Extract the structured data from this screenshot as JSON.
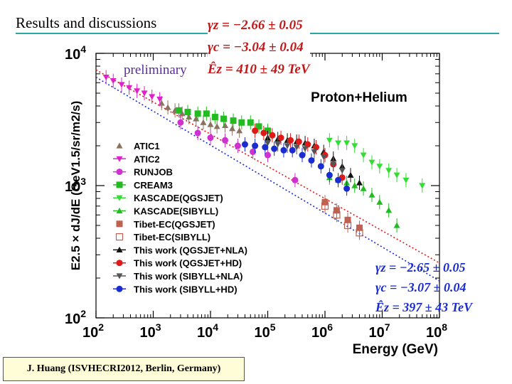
{
  "slide": {
    "title": "Results and discussions",
    "credit": "J. Huang  (ISVHECRI2012,  Berlin,  Germany)"
  },
  "fits": {
    "hd": [
      "γz = −2.66 ± 0.05",
      "γc = −3.04 ± 0.04",
      "Êz = 410 ± 49 TeV"
    ],
    "sibyll": [
      "γz = −2.65 ± 0.05",
      "γc = −3.07 ± 0.04",
      "Êz = 397 ± 43 TeV"
    ]
  },
  "chart_data": {
    "type": "scatter",
    "title": "Proton+Helium",
    "annotation": "preliminary",
    "xlabel": "Energy (GeV)",
    "ylabel": "E2.5 × dJ/dE (GeV1.5/sr/m2/s)",
    "xscale": "log",
    "yscale": "log",
    "xlim": [
      100,
      100000000
    ],
    "ylim": [
      100,
      10000
    ],
    "xticks": [
      "10^2",
      "10^3",
      "10^4",
      "10^5",
      "10^6",
      "10^7",
      "10^8"
    ],
    "yticks": [
      "10^2",
      "10^3",
      "10^4"
    ],
    "series": [
      {
        "name": "ATIC1",
        "marker": "tri-up",
        "color": "#8a7260",
        "x": [
          1400,
          1800,
          2400,
          3200,
          4200,
          5600,
          7500,
          10000,
          13000,
          18000,
          24000,
          32000
        ],
        "y": [
          4200,
          3900,
          3700,
          3500,
          3300,
          3200,
          3000,
          2900,
          2800,
          2850,
          2700,
          2600
        ]
      },
      {
        "name": "ATIC2",
        "marker": "tri-down",
        "color": "#e020c8",
        "x": [
          150,
          200,
          280,
          380,
          520,
          700,
          950,
          1300
        ],
        "y": [
          6600,
          6200,
          5800,
          5500,
          5200,
          5000,
          4700,
          4500
        ]
      },
      {
        "name": "RUNJOB",
        "marker": "circle",
        "color": "#d030d0",
        "x": [
          3000,
          6000,
          10000,
          18000,
          30000,
          55000,
          100000,
          300000
        ],
        "y": [
          3000,
          2500,
          2300,
          2200,
          2000,
          1800,
          1700,
          1100
        ]
      },
      {
        "name": "CREAM3",
        "marker": "square",
        "color": "#22bb22",
        "x": [
          2800,
          4000,
          6000,
          8500,
          12000,
          17000,
          25000,
          35000,
          50000,
          70000,
          100000
        ],
        "y": [
          3700,
          3600,
          3500,
          3500,
          3300,
          3200,
          3100,
          3000,
          3000,
          2800,
          2600
        ]
      },
      {
        "name": "KASCADE(QGSJET)",
        "marker": "tri-down",
        "color": "#33dd33",
        "x": [
          1200000,
          1700000,
          2400000,
          3300000,
          4700000,
          6600000,
          9000000,
          13000000,
          18000000,
          26000000,
          50000000
        ],
        "y": [
          2200,
          2100,
          2100,
          2000,
          1700,
          1500,
          1400,
          1300,
          1200,
          1100,
          1000
        ]
      },
      {
        "name": "KASCADE(SIBYLL)",
        "marker": "tri-up",
        "color": "#22bb22",
        "x": [
          1200000,
          1700000,
          2400000,
          3300000,
          4700000,
          6600000,
          9000000,
          13000000,
          18000000
        ],
        "y": [
          1150,
          1100,
          1050,
          1000,
          950,
          850,
          750,
          650,
          500
        ]
      },
      {
        "name": "Tibet-EC(QGSJET)",
        "marker": "square",
        "color": "#c06050",
        "x": [
          1000000,
          1600000,
          2500000,
          4000000
        ],
        "y": [
          750,
          650,
          550,
          480
        ]
      },
      {
        "name": "Tibet-EC(SIBYLL)",
        "marker": "open-square",
        "color": "#c06050",
        "x": [
          1000000,
          1600000,
          2500000,
          4000000
        ],
        "y": [
          700,
          600,
          500,
          440
        ]
      },
      {
        "name": "This work (QGSJET+NLA)",
        "marker": "tri-up",
        "color": "#111111",
        "x": [
          100000,
          150000,
          220000,
          320000,
          450000,
          650000,
          950000,
          1400000,
          2000000,
          2800000,
          4000000
        ],
        "y": [
          2300,
          2250,
          2200,
          2150,
          2100,
          2000,
          1800,
          1600,
          1400,
          1200,
          1050
        ]
      },
      {
        "name": "This work (QGSJET+HD)",
        "marker": "circle",
        "color": "#e01818",
        "x": [
          60000,
          85000,
          120000,
          170000,
          250000,
          350000,
          500000,
          700000,
          1000000,
          1400000,
          2000000
        ],
        "y": [
          2600,
          2500,
          2400,
          2300,
          2200,
          2150,
          2050,
          1950,
          1700,
          1450,
          1150
        ]
      },
      {
        "name": "This work (SIBYLL+NLA)",
        "marker": "tri-down",
        "color": "#555555",
        "x": [
          100000,
          150000,
          220000,
          320000,
          450000,
          650000,
          950000,
          1400000,
          2000000
        ],
        "y": [
          2100,
          2050,
          2000,
          1950,
          1900,
          1800,
          1650,
          1450,
          1300
        ]
      },
      {
        "name": "This work (SIBYLL+HD)",
        "marker": "circle",
        "color": "#1a2bd0",
        "x": [
          40000,
          60000,
          90000,
          130000,
          190000,
          270000,
          400000,
          580000,
          850000,
          1200000,
          1700000,
          2400000
        ],
        "y": [
          2050,
          2000,
          1950,
          1900,
          1850,
          1850,
          1700,
          1550,
          1400,
          1200,
          1100,
          950
        ]
      }
    ],
    "fit_lines": [
      {
        "name": "HD fit",
        "color": "#e01818",
        "x": [
          100,
          100000000
        ],
        "y": [
          7500,
          260
        ]
      },
      {
        "name": "SIBYLL fit",
        "color": "#1a2bd0",
        "x": [
          100,
          100000000
        ],
        "y": [
          6600,
          190
        ]
      }
    ]
  }
}
